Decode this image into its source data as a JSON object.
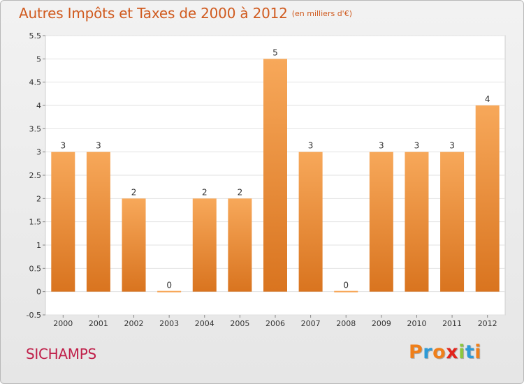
{
  "title": "Autres Impôts et Taxes de 2000 à 2012",
  "subtitle": "(en milliers d'€)",
  "place": "SICHAMPS",
  "logo": {
    "text": "Proxiti",
    "colors": [
      "#ef7f1a",
      "#2d9ad6",
      "#ef7f1a",
      "#e2251d",
      "#8cc63e",
      "#2d9ad6",
      "#ef7f1a"
    ]
  },
  "colors": {
    "title": "#d05a1e",
    "place": "#c0204a",
    "bar_top": "#f7a85a",
    "bar_bottom": "#d9741f"
  },
  "chart_data": {
    "type": "bar",
    "categories": [
      "2000",
      "2001",
      "2002",
      "2003",
      "2004",
      "2005",
      "2006",
      "2007",
      "2008",
      "2009",
      "2010",
      "2011",
      "2012"
    ],
    "values": [
      3,
      3,
      2,
      0,
      2,
      2,
      5,
      3,
      0,
      3,
      3,
      3,
      4
    ],
    "data_labels": [
      "3",
      "3",
      "2",
      "0",
      "2",
      "2",
      "5",
      "3",
      "0",
      "3",
      "3",
      "3",
      "4"
    ],
    "y_ticks": [
      "-0.5",
      "0",
      "0.5",
      "1",
      "1.5",
      "2",
      "2.5",
      "3",
      "3.5",
      "4",
      "4.5",
      "5",
      "5.5"
    ],
    "ylim": [
      -0.5,
      5.5
    ],
    "grid": true,
    "legend": "none"
  }
}
